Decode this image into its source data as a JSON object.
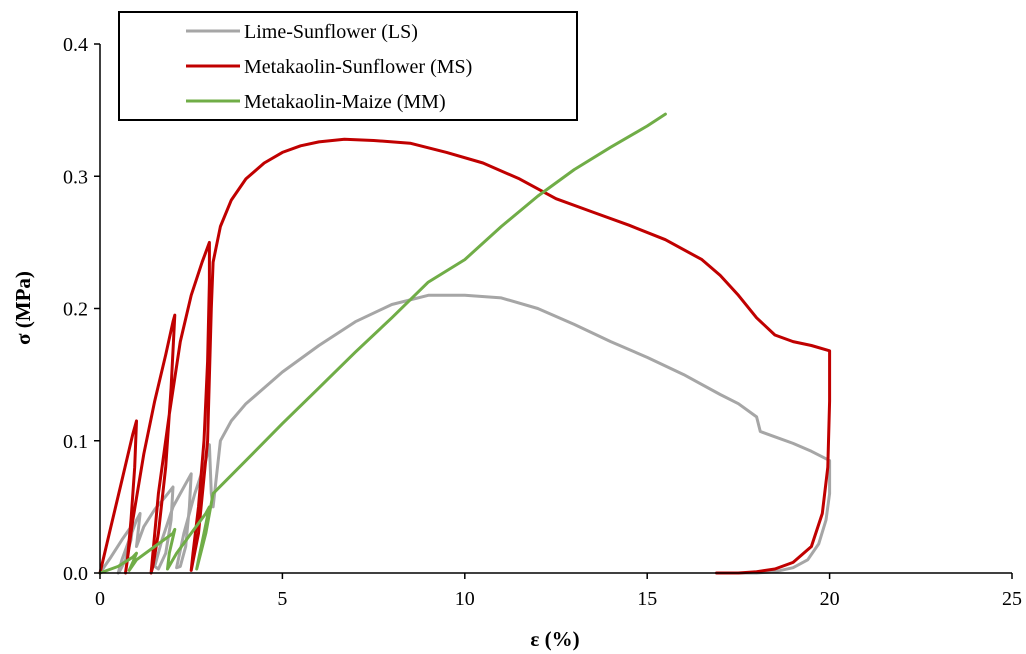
{
  "chart_data": {
    "type": "line",
    "title": "",
    "xlabel": "ε (%)",
    "ylabel": "σ (MPa)",
    "xlim": [
      0,
      25
    ],
    "ylim": [
      0,
      0.4
    ],
    "xticks": [
      "0",
      "5",
      "10",
      "15",
      "20",
      "25"
    ],
    "yticks": [
      "0.0",
      "0.1",
      "0.2",
      "0.3",
      "0.4"
    ],
    "grid": false,
    "legend_position": "top-left",
    "series": [
      {
        "name": "Lime-Sunflower (LS)",
        "color": "#a6a6a6",
        "x": [
          0,
          0.3,
          0.6,
          0.8,
          0.9,
          0.85,
          0.7,
          0.55,
          0.5,
          0.6,
          0.8,
          1.0,
          1.1,
          1.0,
          1.2,
          1.5,
          1.8,
          2.0,
          1.95,
          1.8,
          1.6,
          1.5,
          1.7,
          2.0,
          2.3,
          2.5,
          2.45,
          2.35,
          2.2,
          2.1,
          2.3,
          2.6,
          2.9,
          3.0,
          3.05,
          3.1,
          3.3,
          3.6,
          4.0,
          4.5,
          5.0,
          6.0,
          7.0,
          8.0,
          9.0,
          10.0,
          11.0,
          12.0,
          13.0,
          14.0,
          15.0,
          16.0,
          17.0,
          17.5,
          18.0,
          18.1,
          18.5,
          19.0,
          19.5,
          20.0,
          20.0,
          19.9,
          19.7,
          19.4,
          19.0,
          18.5,
          18.0,
          17.3
        ],
        "y": [
          0,
          0.012,
          0.025,
          0.033,
          0.036,
          0.025,
          0.01,
          0.002,
          0,
          0.01,
          0.025,
          0.04,
          0.045,
          0.02,
          0.035,
          0.048,
          0.058,
          0.065,
          0.04,
          0.015,
          0.003,
          0.005,
          0.025,
          0.05,
          0.065,
          0.075,
          0.05,
          0.02,
          0.005,
          0.004,
          0.03,
          0.06,
          0.085,
          0.097,
          0.06,
          0.05,
          0.1,
          0.115,
          0.128,
          0.14,
          0.152,
          0.172,
          0.19,
          0.203,
          0.21,
          0.21,
          0.208,
          0.2,
          0.188,
          0.175,
          0.163,
          0.15,
          0.135,
          0.128,
          0.118,
          0.107,
          0.103,
          0.098,
          0.092,
          0.085,
          0.06,
          0.04,
          0.022,
          0.01,
          0.004,
          0.001,
          0,
          0
        ]
      },
      {
        "name": "Metakaolin-Sunflower (MS)",
        "color": "#c00000",
        "x": [
          0,
          0.3,
          0.6,
          0.9,
          1.0,
          0.95,
          0.85,
          0.75,
          0.7,
          0.9,
          1.2,
          1.5,
          1.8,
          2.0,
          2.05,
          1.95,
          1.8,
          1.6,
          1.45,
          1.4,
          1.6,
          1.9,
          2.2,
          2.5,
          2.8,
          3.0,
          3.0,
          2.95,
          2.85,
          2.7,
          2.55,
          2.5,
          2.7,
          2.95,
          3.05,
          3.1,
          3.3,
          3.6,
          4.0,
          4.5,
          5.0,
          5.5,
          6.0,
          6.7,
          7.5,
          8.5,
          9.5,
          10.5,
          11.5,
          12.5,
          13.5,
          14.5,
          15.5,
          16.5,
          17.0,
          17.5,
          18.0,
          18.5,
          19.0,
          19.5,
          20.0,
          20.0,
          19.95,
          19.8,
          19.5,
          19.0,
          18.5,
          18.0,
          17.5,
          16.9
        ],
        "y": [
          0,
          0.035,
          0.07,
          0.105,
          0.115,
          0.08,
          0.04,
          0.01,
          0,
          0.04,
          0.09,
          0.13,
          0.165,
          0.19,
          0.195,
          0.14,
          0.08,
          0.03,
          0.005,
          0,
          0.06,
          0.12,
          0.175,
          0.21,
          0.235,
          0.25,
          0.22,
          0.16,
          0.1,
          0.05,
          0.015,
          0.002,
          0.03,
          0.1,
          0.2,
          0.235,
          0.262,
          0.282,
          0.298,
          0.31,
          0.318,
          0.323,
          0.326,
          0.328,
          0.327,
          0.325,
          0.318,
          0.31,
          0.298,
          0.283,
          0.273,
          0.263,
          0.252,
          0.237,
          0.225,
          0.21,
          0.193,
          0.18,
          0.175,
          0.172,
          0.168,
          0.13,
          0.08,
          0.045,
          0.02,
          0.008,
          0.003,
          0.001,
          0,
          0
        ]
      },
      {
        "name": "Metakaolin-Maize (MM)",
        "color": "#70ad47",
        "x": [
          0,
          0.5,
          0.9,
          1.0,
          0.9,
          0.8,
          1.0,
          1.5,
          2.0,
          2.05,
          1.9,
          1.85,
          2.1,
          2.5,
          2.9,
          3.0,
          2.85,
          2.7,
          2.65,
          2.9,
          3.1,
          4.0,
          5.0,
          6.0,
          7.0,
          8.0,
          9.0,
          10.0,
          11.0,
          12.0,
          13.0,
          14.0,
          15.0,
          15.5
        ],
        "y": [
          0,
          0.005,
          0.012,
          0.015,
          0.008,
          0.002,
          0.01,
          0.02,
          0.03,
          0.033,
          0.015,
          0.003,
          0.015,
          0.03,
          0.045,
          0.05,
          0.03,
          0.01,
          0.003,
          0.03,
          0.06,
          0.085,
          0.113,
          0.14,
          0.167,
          0.193,
          0.22,
          0.237,
          0.262,
          0.285,
          0.305,
          0.322,
          0.338,
          0.347
        ]
      }
    ]
  }
}
